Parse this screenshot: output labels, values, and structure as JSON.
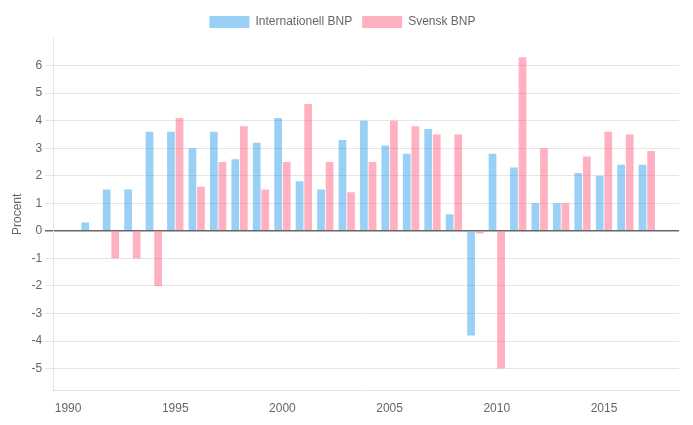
{
  "chart_data": {
    "type": "bar",
    "x": [
      1991,
      1992,
      1993,
      1994,
      1995,
      1996,
      1997,
      1998,
      1999,
      2000,
      2001,
      2002,
      2003,
      2004,
      2005,
      2006,
      2007,
      2008,
      2009,
      2010,
      2011,
      2012,
      2013,
      2014,
      2015,
      2016,
      2017
    ],
    "series": [
      {
        "name": "Internationell BNP",
        "values": [
          0.3,
          1.5,
          1.5,
          3.6,
          3.6,
          3.0,
          3.6,
          2.6,
          3.2,
          4.1,
          1.8,
          1.5,
          3.3,
          4.0,
          3.1,
          2.8,
          3.7,
          0.6,
          -3.8,
          2.8,
          2.3,
          1.0,
          1.0,
          2.1,
          2.0,
          2.4,
          2.4
        ]
      },
      {
        "name": "Svensk BNP",
        "values": [
          null,
          -1.0,
          -1.0,
          -2.0,
          4.1,
          1.6,
          2.5,
          3.8,
          1.5,
          2.5,
          4.6,
          2.5,
          1.4,
          2.5,
          4.0,
          3.8,
          3.5,
          3.5,
          -0.1,
          -5.0,
          6.3,
          3.0,
          1.0,
          2.7,
          3.6,
          3.5,
          2.9
        ]
      }
    ],
    "ylabel": "Procent",
    "xlim": [
      1989.3,
      2018.5
    ],
    "xticks": [
      1990,
      1995,
      2000,
      2005,
      2010,
      2015
    ],
    "ylim": [
      -5.8,
      7.0
    ],
    "yticks": [
      -5,
      -4,
      -3,
      -2,
      -1,
      0,
      1,
      2,
      3,
      4,
      5,
      6
    ],
    "grid": true,
    "legend": "top"
  }
}
